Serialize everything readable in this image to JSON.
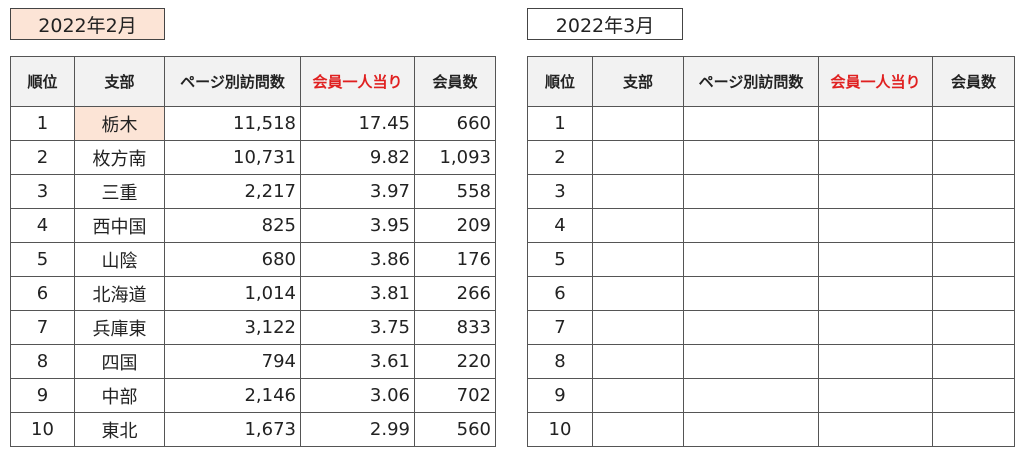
{
  "left": {
    "title": "2022年2月",
    "headers": [
      "順位",
      "支部",
      "ページ別訪問数",
      "会員一人当り",
      "会員数"
    ],
    "rows": [
      [
        "1",
        "栃木",
        "11,518",
        "17.45",
        "660"
      ],
      [
        "2",
        "枚方南",
        "10,731",
        "9.82",
        "1,093"
      ],
      [
        "3",
        "三重",
        "2,217",
        "3.97",
        "558"
      ],
      [
        "4",
        "西中国",
        "825",
        "3.95",
        "209"
      ],
      [
        "5",
        "山陰",
        "680",
        "3.86",
        "176"
      ],
      [
        "6",
        "北海道",
        "1,014",
        "3.81",
        "266"
      ],
      [
        "7",
        "兵庫東",
        "3,122",
        "3.75",
        "833"
      ],
      [
        "8",
        "四国",
        "794",
        "3.61",
        "220"
      ],
      [
        "9",
        "中部",
        "2,146",
        "3.06",
        "702"
      ],
      [
        "10",
        "東北",
        "1,673",
        "2.99",
        "560"
      ]
    ]
  },
  "right": {
    "title": "2022年3月",
    "headers": [
      "順位",
      "支部",
      "ページ別訪問数",
      "会員一人当り",
      "会員数"
    ],
    "rows": [
      [
        "1",
        "",
        "",
        "",
        ""
      ],
      [
        "2",
        "",
        "",
        "",
        ""
      ],
      [
        "3",
        "",
        "",
        "",
        ""
      ],
      [
        "4",
        "",
        "",
        "",
        ""
      ],
      [
        "5",
        "",
        "",
        "",
        ""
      ],
      [
        "6",
        "",
        "",
        "",
        ""
      ],
      [
        "7",
        "",
        "",
        "",
        ""
      ],
      [
        "8",
        "",
        "",
        "",
        ""
      ],
      [
        "9",
        "",
        "",
        "",
        ""
      ],
      [
        "10",
        "",
        "",
        "",
        ""
      ]
    ]
  },
  "colors": {
    "highlight": "#fce4d6",
    "header_red": "#e02020",
    "header_bg": "#f2f2f2"
  }
}
